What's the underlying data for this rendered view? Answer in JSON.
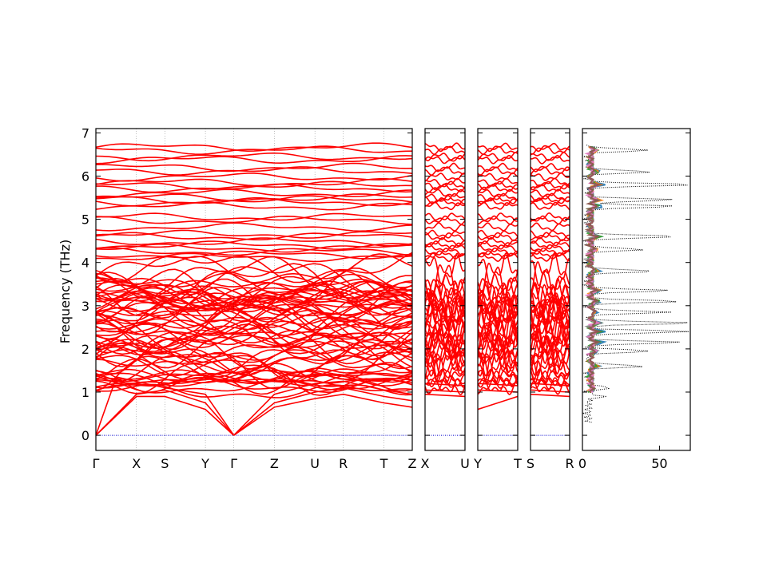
{
  "chart_data": {
    "type": "line",
    "ylabel": "Frequency (THz)",
    "ylim": [
      -0.35,
      7.1
    ],
    "yticks": [
      "0",
      "1",
      "2",
      "3",
      "4",
      "5",
      "6",
      "7"
    ],
    "band_color": "#ff0000",
    "zero_line_color": "#0000cc",
    "panels": [
      {
        "kind": "bands",
        "path_labels": [
          "Γ",
          "X",
          "S",
          "Y",
          "Γ",
          "Z",
          "U",
          "R",
          "T",
          "Z"
        ],
        "segment_lengths": [
          1.0,
          0.7,
          1.0,
          0.7,
          1.0,
          1.0,
          0.7,
          1.0,
          0.7
        ]
      },
      {
        "kind": "bands",
        "path_labels": [
          "X",
          "U"
        ],
        "segment_lengths": [
          1.0
        ]
      },
      {
        "kind": "bands",
        "path_labels": [
          "Y",
          "T"
        ],
        "segment_lengths": [
          1.0
        ]
      },
      {
        "kind": "bands",
        "path_labels": [
          "S",
          "R"
        ],
        "segment_lengths": [
          1.0
        ]
      }
    ],
    "dos": {
      "xlim": [
        0,
        70
      ],
      "xticks": [
        "0",
        "50"
      ],
      "total_color": "#000000",
      "pdos_colors": [
        "#1f77b4",
        "#ff7f0e",
        "#2ca02c",
        "#7f7f7f",
        "#e377c2",
        "#8c564b"
      ],
      "total_peaks": [
        {
          "f": 6.6,
          "v": 38
        },
        {
          "f": 6.1,
          "v": 41
        },
        {
          "f": 5.8,
          "v": 68
        },
        {
          "f": 5.45,
          "v": 56
        },
        {
          "f": 5.3,
          "v": 55
        },
        {
          "f": 4.6,
          "v": 59
        },
        {
          "f": 4.3,
          "v": 35
        },
        {
          "f": 3.8,
          "v": 43
        },
        {
          "f": 3.35,
          "v": 52
        },
        {
          "f": 3.1,
          "v": 58
        },
        {
          "f": 2.85,
          "v": 52
        },
        {
          "f": 2.6,
          "v": 67
        },
        {
          "f": 2.4,
          "v": 65
        },
        {
          "f": 2.15,
          "v": 60
        },
        {
          "f": 1.95,
          "v": 42
        },
        {
          "f": 1.6,
          "v": 36
        },
        {
          "f": 1.1,
          "v": 15
        },
        {
          "f": 0.9,
          "v": 10
        }
      ]
    }
  }
}
